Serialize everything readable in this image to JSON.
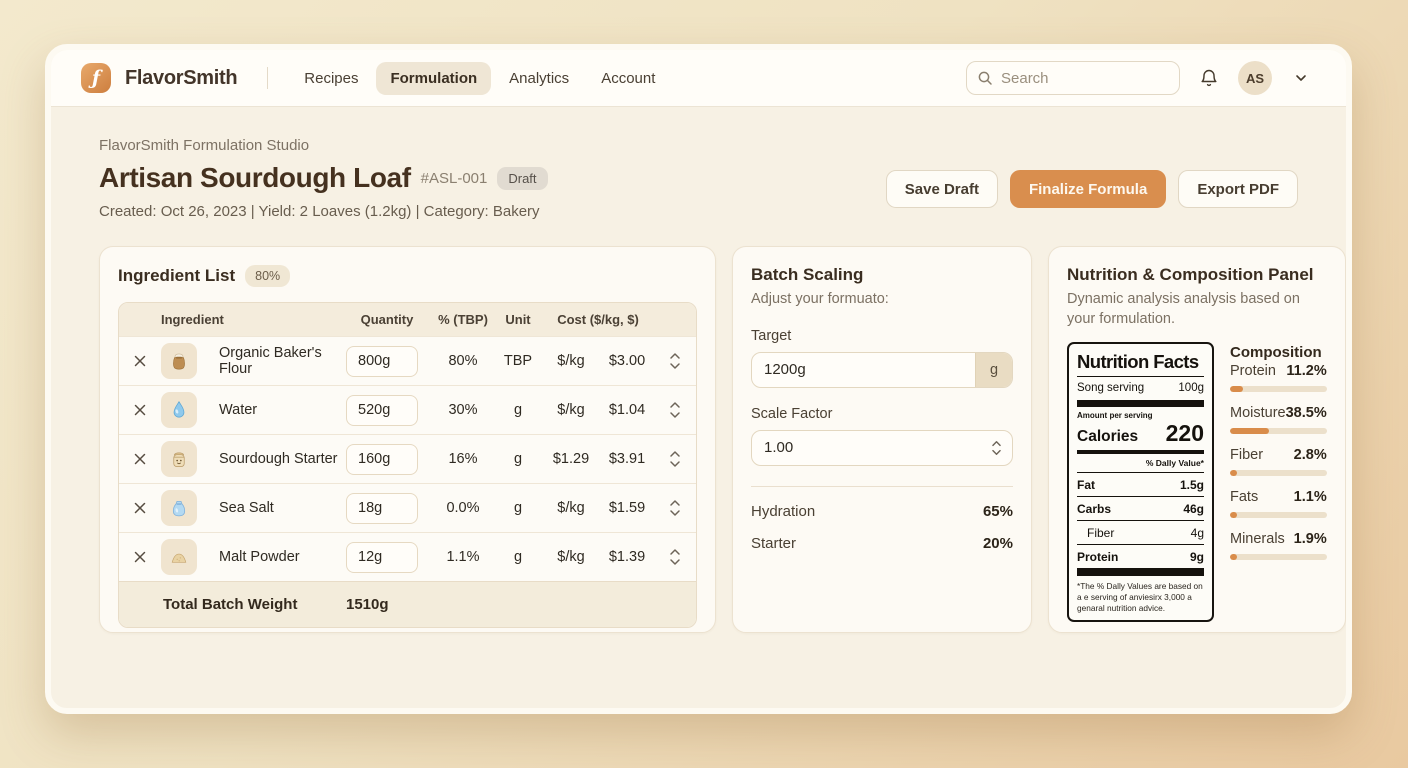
{
  "brand": {
    "name": "FlavorSmith"
  },
  "nav": {
    "items": [
      {
        "label": "Recipes"
      },
      {
        "label": "Formulation"
      },
      {
        "label": "Analytics"
      },
      {
        "label": "Account"
      }
    ]
  },
  "search": {
    "placeholder": "Search"
  },
  "user": {
    "initials": "AS"
  },
  "page": {
    "breadcrumb": "FlavorSmith Formulation Studio",
    "title": "Artisan Sourdough Loaf",
    "code": "#ASL-001",
    "status": "Draft",
    "meta": "Created: Oct 26, 2023 | Yield: 2 Loaves (1.2kg) | Category: Bakery",
    "actions": {
      "save": "Save Draft",
      "finalize": "Finalize Formula",
      "export": "Export PDF"
    }
  },
  "ingredients": {
    "title": "Ingredient List",
    "badge": "80%",
    "columns": {
      "ingredient": "Ingredient",
      "quantity": "Quantity",
      "percent": "% (TBP)",
      "unit": "Unit",
      "cost": "Cost ($/kg, $)"
    },
    "rows": [
      {
        "icon": "flour-sack-icon",
        "name": "Organic Baker's Flour",
        "quantity": "800g",
        "percent": "80%",
        "unit": "TBP",
        "cost_rate": "$/kg",
        "cost_value": "$3.00"
      },
      {
        "icon": "water-drop-icon",
        "name": "Water",
        "quantity": "520g",
        "percent": "30%",
        "unit": "g",
        "cost_rate": "$/kg",
        "cost_value": "$1.04"
      },
      {
        "icon": "starter-jar-icon",
        "name": "Sourdough Starter",
        "quantity": "160g",
        "percent": "16%",
        "unit": "g",
        "cost_rate": "$1.29",
        "cost_value": "$3.91"
      },
      {
        "icon": "salt-bag-icon",
        "name": "Sea Salt",
        "quantity": "18g",
        "percent": "0.0%",
        "unit": "g",
        "cost_rate": "$/kg",
        "cost_value": "$1.59"
      },
      {
        "icon": "malt-powder-icon",
        "name": "Malt Powder",
        "quantity": "12g",
        "percent": "1.1%",
        "unit": "g",
        "cost_rate": "$/kg",
        "cost_value": "$1.39"
      }
    ],
    "total_label": "Total Batch Weight",
    "total_value": "1510g"
  },
  "batch_scaling": {
    "title": "Batch Scaling",
    "subtitle": "Adjust your formuato:",
    "target_label": "Target",
    "target_value": "1200g",
    "target_unit": "g",
    "scale_label": "Scale Factor",
    "scale_value": "1.00",
    "stats": [
      {
        "label": "Hydration",
        "value": "65%"
      },
      {
        "label": "Starter",
        "value": "20%"
      }
    ]
  },
  "nutrition": {
    "title": "Nutrition & Composition Panel",
    "subtitle": "Dynamic analysis analysis based on your formulation.",
    "label": {
      "heading": "Nutrition Facts",
      "serving_label": "Song serving",
      "serving_value": "100g",
      "amount_label": "Amount per serving",
      "calories_label": "Calories",
      "calories_value": "220",
      "dv_header": "% Dally Value*",
      "rows": [
        {
          "label": "Fat",
          "value": "1.5g"
        },
        {
          "label": "Carbs",
          "value": "46g"
        },
        {
          "label": "Fiber",
          "value": "4g"
        },
        {
          "label": "Protein",
          "value": "9g"
        }
      ],
      "footnote": "*The % Dally Values are based on a e serving of anviesirx 3,000 a genaral nutrition advice."
    },
    "composition": {
      "heading": "Composition",
      "metrics": [
        {
          "label": "Protein",
          "value": "11.2%",
          "pct": 13
        },
        {
          "label": "Moisture",
          "value": "38.5%",
          "pct": 40
        },
        {
          "label": "Fiber",
          "value": "2.8%",
          "pct": 4
        },
        {
          "label": "Fats",
          "value": "1.1%",
          "pct": 2
        },
        {
          "label": "Minerals",
          "value": "1.9%",
          "pct": 3
        }
      ]
    }
  },
  "colors": {
    "accent": "#d98e4e",
    "bar_fill": "#d98c4a"
  }
}
